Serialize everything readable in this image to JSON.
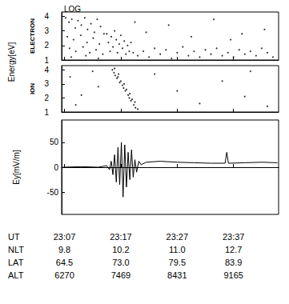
{
  "chart_data": [
    {
      "type": "scatter",
      "title": "LOG",
      "ylabel": "Energy[eV]",
      "series": [
        {
          "name": "ELECTRON",
          "color": "#000000",
          "x": [
            1387.2,
            1387.8,
            1388.3,
            1388.9,
            1389.4,
            1390.0,
            1390.6,
            1391.1,
            1391.7,
            1392.3,
            1392.8,
            1393.4,
            1394.0,
            1387.5,
            1388.6,
            1389.9,
            1391.0,
            1392.1,
            1393.2,
            1387.9,
            1389.0,
            1390.3,
            1391.5,
            1392.6,
            1393.8,
            1388.2,
            1390.8,
            1393.0,
            1394.5,
            1394.8,
            1395.1,
            1395.3,
            1395.6,
            1395.9,
            1396.2,
            1396.4,
            1396.7,
            1397.0,
            1397.3,
            1397.6,
            1397.9,
            1398.2,
            1398.5,
            1398.8,
            1399.2,
            1400,
            1401,
            1402,
            1403,
            1404,
            1405,
            1406,
            1407,
            1408,
            1409,
            1410,
            1411,
            1412,
            1413,
            1414,
            1415,
            1416,
            1417,
            1418,
            1419,
            1420,
            1421,
            1422,
            1423,
            1424,
            1401.5,
            1405.5,
            1409.5,
            1413.5,
            1418.5,
            1422.5,
            1399.5,
            1416.5
          ],
          "values": [
            3.9,
            3.6,
            3.8,
            3.2,
            3.7,
            3.4,
            3.9,
            3.1,
            3.5,
            2.9,
            3.8,
            3.3,
            2.8,
            2.6,
            2.4,
            2.7,
            2.2,
            2.5,
            2.1,
            1.8,
            1.6,
            1.9,
            1.5,
            1.7,
            1.4,
            1.2,
            1.3,
            1.1,
            2.8,
            2.2,
            1.6,
            2.6,
            1.9,
            3.0,
            2.4,
            1.5,
            2.1,
            2.7,
            1.8,
            2.3,
            1.4,
            2.0,
            1.6,
            2.2,
            1.5,
            1.3,
            1.6,
            1.2,
            1.8,
            1.4,
            1.7,
            1.1,
            1.5,
            1.9,
            1.3,
            1.6,
            1.2,
            1.7,
            1.4,
            1.8,
            1.3,
            1.5,
            1.2,
            1.7,
            1.4,
            1.6,
            1.3,
            1.8,
            1.5,
            1.2,
            2.9,
            3.4,
            2.6,
            3.8,
            2.8,
            3.1,
            3.6,
            2.4
          ]
        }
      ],
      "xlim": [
        1386.5,
        1425
      ],
      "xticks": [
        {
          "value": 1387,
          "label": "23:07"
        },
        {
          "value": 1397,
          "label": "23:17"
        },
        {
          "value": 1407,
          "label": "23:27"
        },
        {
          "value": 1417,
          "label": "23:37"
        }
      ],
      "ylim": [
        1,
        4.3
      ],
      "yticks": [
        1,
        2,
        3,
        4
      ],
      "tick_labels": "y",
      "grid": false
    },
    {
      "type": "scatter",
      "series": [
        {
          "name": "ION",
          "color": "#000000",
          "x": [
            1388,
            1389,
            1390,
            1392,
            1393,
            1395.5,
            1395.8,
            1396.0,
            1396.3,
            1396.5,
            1396.8,
            1397.0,
            1397.3,
            1397.5,
            1397.8,
            1398.0,
            1398.3,
            1398.5,
            1398.8,
            1399.0,
            1399.3,
            1399.6,
            1400.0,
            1395.9,
            1396.6,
            1397.6,
            1398.6,
            1399.5,
            1403,
            1407,
            1411,
            1415,
            1419,
            1420,
            1423
          ],
          "values": [
            3.5,
            1.5,
            2.2,
            3.9,
            2.8,
            4.0,
            3.8,
            3.6,
            3.4,
            3.5,
            3.1,
            3.2,
            2.9,
            2.7,
            2.5,
            2.6,
            2.2,
            2.0,
            1.8,
            1.9,
            1.5,
            1.3,
            1.2,
            4.1,
            3.7,
            3.0,
            2.3,
            1.7,
            3.7,
            2.5,
            1.6,
            3.2,
            2.1,
            3.9,
            1.4
          ]
        }
      ],
      "xlim": [
        1386.5,
        1425
      ],
      "xticks": [
        {
          "value": 1387,
          "label": "23:07"
        },
        {
          "value": 1397,
          "label": "23:17"
        },
        {
          "value": 1407,
          "label": "23:27"
        },
        {
          "value": 1417,
          "label": "23:37"
        }
      ],
      "ylim": [
        1,
        4.3
      ],
      "yticks": [
        1,
        2,
        3,
        4
      ],
      "tick_labels": "y",
      "grid": false
    },
    {
      "type": "line",
      "ylabel": "Ey[mV/m]",
      "xlabel": "UT",
      "color": "#000000",
      "x": [
        1386.7,
        1390,
        1393,
        1394.5,
        1395,
        1395.3,
        1395.6,
        1395.9,
        1396.2,
        1396.5,
        1396.8,
        1397.1,
        1397.4,
        1397.7,
        1398.0,
        1398.3,
        1398.6,
        1398.9,
        1399.2,
        1399.5,
        1399.8,
        1400.2,
        1400.6,
        1401.5,
        1404,
        1407,
        1410,
        1413,
        1415.5,
        1415.8,
        1416.1,
        1419,
        1422,
        1424.8
      ],
      "values": [
        0,
        1,
        0,
        3,
        -5,
        12,
        -15,
        25,
        -30,
        40,
        -35,
        50,
        -60,
        45,
        -40,
        30,
        -25,
        35,
        -20,
        15,
        -10,
        12,
        5,
        10,
        12,
        10,
        9,
        8,
        8,
        30,
        8,
        9,
        10,
        9
      ],
      "xlim": [
        1386.5,
        1425
      ],
      "xticks": [
        {
          "value": 1387,
          "label": "23:07"
        },
        {
          "value": 1397,
          "label": "23:17"
        },
        {
          "value": 1407,
          "label": "23:27"
        },
        {
          "value": 1417,
          "label": "23:37"
        }
      ],
      "x_table": [
        {
          "name": "NLT",
          "labels": [
            "9.8",
            "10.2",
            "11.0",
            "12.7"
          ]
        },
        {
          "name": "LAT",
          "labels": [
            "64.5",
            "73.0",
            "79.5",
            "83.9"
          ]
        },
        {
          "name": "ALT",
          "labels": [
            "6270",
            "7469",
            "8431",
            "9165"
          ]
        }
      ],
      "ylim": [
        -95,
        95
      ],
      "yticks": [
        -50,
        0,
        50
      ],
      "grid": false
    }
  ]
}
